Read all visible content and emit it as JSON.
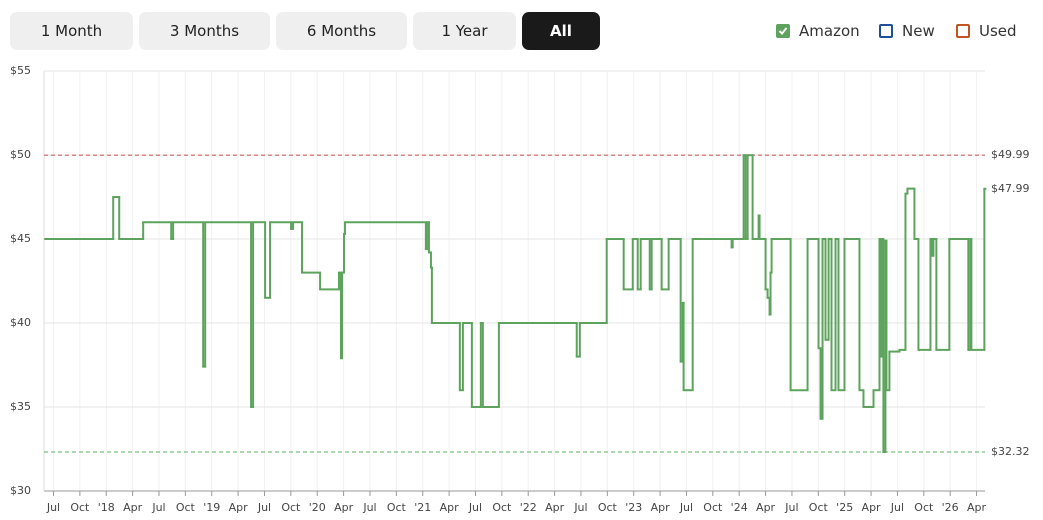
{
  "controls": {
    "ranges": [
      "1 Month",
      "3 Months",
      "6 Months",
      "1 Year",
      "All"
    ],
    "selected": 4
  },
  "chart_data": {
    "type": "step",
    "x": [
      2017.422,
      2018.066,
      2018.123,
      2018.35,
      2018.616,
      2018.634,
      2018.919,
      2018.938,
      2019.373,
      2019.392,
      2019.506,
      2019.553,
      2019.752,
      2019.771,
      2019.856,
      2020.027,
      2020.206,
      2020.225,
      2020.235,
      2020.254,
      2020.263,
      2021.03,
      2021.04,
      2021.059,
      2021.078,
      2021.087,
      2021.352,
      2021.381,
      2021.466,
      2021.551,
      2021.57,
      2021.722,
      2022.46,
      2022.489,
      2022.744,
      2022.905,
      2022.991,
      2023.038,
      2023.066,
      2023.152,
      2023.17,
      2023.265,
      2023.331,
      2023.445,
      2023.464,
      2023.473,
      2023.559,
      2023.928,
      2023.938,
      2024.042,
      2024.061,
      2024.08,
      2024.127,
      2024.184,
      2024.193,
      2024.25,
      2024.269,
      2024.288,
      2024.297,
      2024.307,
      2024.487,
      2024.648,
      2024.752,
      2024.771,
      2024.79,
      2024.818,
      2024.847,
      2024.875,
      2024.913,
      2024.941,
      2024.998,
      2025.14,
      2025.178,
      2025.273,
      2025.33,
      2025.339,
      2025.358,
      2025.367,
      2025.386,
      2025.396,
      2025.424,
      2025.519,
      2025.576,
      2025.595,
      2025.661,
      2025.699,
      2025.813,
      2025.831,
      2025.841,
      2025.869,
      2025.992,
      2026.172,
      2026.191,
      2026.201,
      2026.324
    ],
    "series": [
      {
        "name": "Amazon",
        "color": "#5da35d",
        "checked": true,
        "values": [
          45,
          47.5,
          45,
          46,
          45,
          46,
          37.4,
          46,
          35,
          46,
          41.5,
          46,
          45.6,
          46,
          43,
          42,
          43,
          37.9,
          43,
          45.3,
          46,
          44.4,
          46,
          44.2,
          43.3,
          40,
          36,
          40,
          35,
          40,
          35,
          40,
          38,
          40,
          45,
          42,
          45,
          42,
          45,
          42,
          45,
          42,
          45,
          37.7,
          41.2,
          36,
          45,
          44.5,
          45,
          49.99,
          45,
          49.99,
          45,
          46.4,
          45,
          42,
          41.5,
          40.5,
          43,
          45,
          36,
          45,
          38.5,
          34.3,
          45,
          39,
          45,
          36,
          45,
          36,
          45,
          36,
          35,
          36,
          45,
          38,
          45,
          32.32,
          44.9,
          36,
          38.3,
          38.4,
          47.7,
          48,
          45,
          38.4,
          45,
          44,
          45,
          38.4,
          45,
          38.4,
          45,
          38.4,
          47.99
        ]
      }
    ],
    "toggles": [
      {
        "name": "New",
        "color": "#1f4f96",
        "checked": false
      },
      {
        "name": "Used",
        "color": "#c0551f",
        "checked": false
      }
    ],
    "reference_lines": [
      {
        "value": 49.99,
        "label": "$49.99",
        "color": "#c96262",
        "dashed": true
      },
      {
        "value": 47.99,
        "label": "$47.99",
        "color": "#5da35d",
        "dashed": false
      },
      {
        "value": 32.32,
        "label": "$32.32",
        "color": "#7cc07c",
        "dashed": true
      }
    ],
    "xlim": [
      2017.41,
      2026.33
    ],
    "xticks": [
      {
        "value": 2017.5,
        "label": "Jul"
      },
      {
        "value": 2017.75,
        "label": "Oct"
      },
      {
        "value": 2018,
        "label": "'18"
      },
      {
        "value": 2018.25,
        "label": "Apr"
      },
      {
        "value": 2018.5,
        "label": "Jul"
      },
      {
        "value": 2018.75,
        "label": "Oct"
      },
      {
        "value": 2019,
        "label": "'19"
      },
      {
        "value": 2019.25,
        "label": "Apr"
      },
      {
        "value": 2019.5,
        "label": "Jul"
      },
      {
        "value": 2019.75,
        "label": "Oct"
      },
      {
        "value": 2020,
        "label": "'20"
      },
      {
        "value": 2020.25,
        "label": "Apr"
      },
      {
        "value": 2020.5,
        "label": "Jul"
      },
      {
        "value": 2020.75,
        "label": "Oct"
      },
      {
        "value": 2021,
        "label": "'21"
      },
      {
        "value": 2021.25,
        "label": "Apr"
      },
      {
        "value": 2021.5,
        "label": "Jul"
      },
      {
        "value": 2021.75,
        "label": "Oct"
      },
      {
        "value": 2022,
        "label": "'22"
      },
      {
        "value": 2022.25,
        "label": "Apr"
      },
      {
        "value": 2022.5,
        "label": "Jul"
      },
      {
        "value": 2022.75,
        "label": "Oct"
      },
      {
        "value": 2023,
        "label": "'23"
      },
      {
        "value": 2023.25,
        "label": "Apr"
      },
      {
        "value": 2023.5,
        "label": "Jul"
      },
      {
        "value": 2023.75,
        "label": "Oct"
      },
      {
        "value": 2024,
        "label": "'24"
      },
      {
        "value": 2024.25,
        "label": "Apr"
      },
      {
        "value": 2024.5,
        "label": "Jul"
      },
      {
        "value": 2024.75,
        "label": "Oct"
      },
      {
        "value": 2025,
        "label": "'25"
      },
      {
        "value": 2025.25,
        "label": "Apr"
      },
      {
        "value": 2025.5,
        "label": "Jul"
      },
      {
        "value": 2025.75,
        "label": "Oct"
      },
      {
        "value": 2026,
        "label": "'26"
      },
      {
        "value": 2026.25,
        "label": "Apr"
      }
    ],
    "ylim": [
      30,
      55
    ],
    "yticks": [
      {
        "value": 30,
        "label": "$30"
      },
      {
        "value": 35,
        "label": "$35"
      },
      {
        "value": 40,
        "label": "$40"
      },
      {
        "value": 45,
        "label": "$45"
      },
      {
        "value": 50,
        "label": "$50"
      },
      {
        "value": 55,
        "label": "$55"
      }
    ],
    "grid": true
  }
}
